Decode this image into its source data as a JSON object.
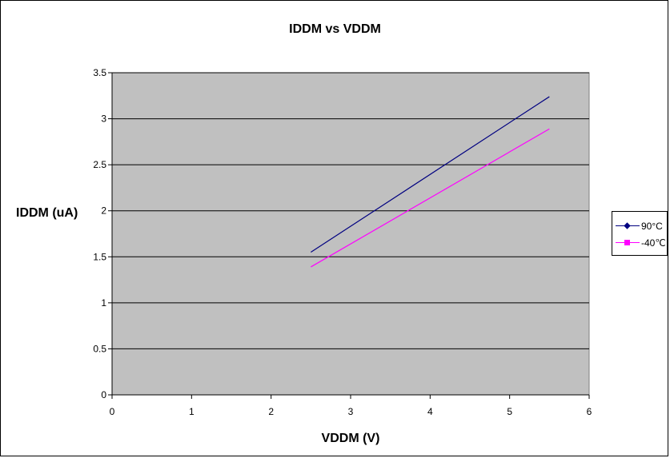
{
  "chart_data": {
    "type": "line",
    "title": "IDDM vs VDDM",
    "xlabel": "VDDM (V)",
    "ylabel": "IDDM (uA)",
    "xlim": [
      0,
      6
    ],
    "ylim": [
      0,
      3.5
    ],
    "x_ticks": [
      "0",
      "1",
      "2",
      "3",
      "4",
      "5",
      "6"
    ],
    "y_ticks": [
      "0",
      "0.5",
      "1",
      "1.5",
      "2",
      "2.5",
      "3",
      "3.5"
    ],
    "grid": "horizontal",
    "plot_background": "#c0c0c0",
    "legend_position": "right",
    "series": [
      {
        "name": "90°C",
        "color": "#000080",
        "marker": "diamond",
        "x": [
          2.5,
          5.5
        ],
        "y": [
          1.55,
          3.24
        ]
      },
      {
        "name": "-40℃",
        "color": "#ff00ff",
        "marker": "square",
        "x": [
          2.5,
          5.5
        ],
        "y": [
          1.39,
          2.89
        ]
      }
    ]
  }
}
